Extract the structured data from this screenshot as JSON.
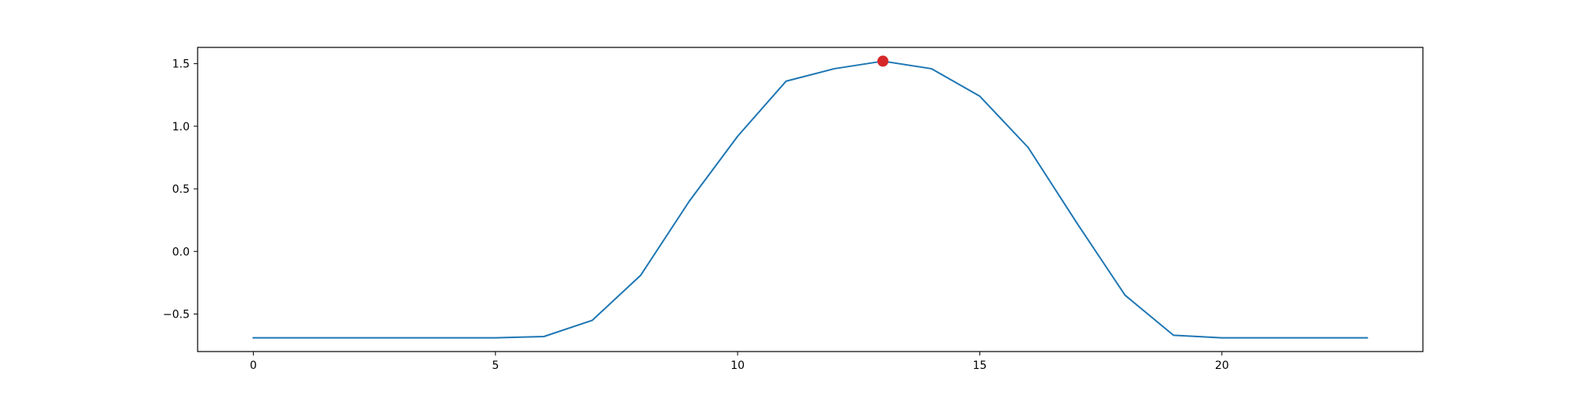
{
  "chart_data": {
    "type": "line",
    "title": "",
    "xlabel": "",
    "ylabel": "",
    "xlim": [
      -1.15,
      24.15
    ],
    "ylim": [
      -0.8,
      1.63
    ],
    "grid": false,
    "legend": "none",
    "x_ticks": [
      0,
      5,
      10,
      15,
      20
    ],
    "x_tick_labels": [
      "0",
      "5",
      "10",
      "15",
      "20"
    ],
    "y_ticks": [
      -0.5,
      0.0,
      0.5,
      1.0,
      1.5
    ],
    "y_tick_labels": [
      "−0.5",
      "0.0",
      "0.5",
      "1.0",
      "1.5"
    ],
    "series": [
      {
        "color": "#1f77b4",
        "x": [
          0,
          1,
          2,
          3,
          4,
          5,
          6,
          7,
          8,
          9,
          10,
          11,
          12,
          13,
          14,
          15,
          16,
          17,
          18,
          19,
          20,
          21,
          22,
          23
        ],
        "values": [
          -0.69,
          -0.69,
          -0.69,
          -0.69,
          -0.69,
          -0.69,
          -0.68,
          -0.55,
          -0.19,
          0.4,
          0.92,
          1.36,
          1.46,
          1.52,
          1.46,
          1.24,
          0.83,
          0.23,
          -0.35,
          -0.67,
          -0.69,
          -0.69,
          -0.69,
          -0.69
        ]
      }
    ],
    "highlight_point": {
      "x": 13,
      "y": 1.52,
      "color": "#d62728"
    }
  }
}
